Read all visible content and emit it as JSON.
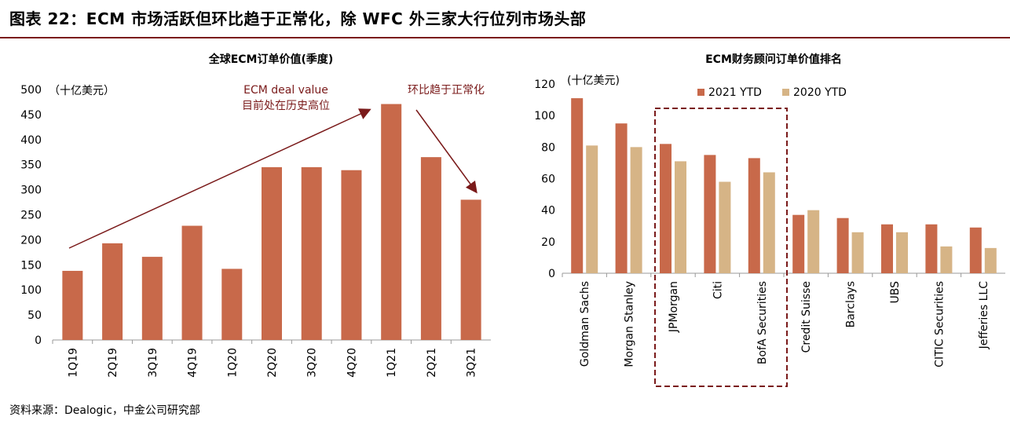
{
  "page": {
    "title": "图表 22：ECM 市场活跃但环比趋于正常化，除 WFC 外三家大行位列市场头部",
    "source": "资料来源：Dealogic，中金公司研究部"
  },
  "colors": {
    "bar_2021": "#c8694a",
    "bar_2020": "#d6b486",
    "annotation": "#7a1a1a",
    "dashed_box": "#7a1a1a",
    "rule": "#7a1a1a"
  },
  "chart_data": [
    {
      "type": "bar",
      "title": "全球ECM订单价值(季度)",
      "unit_label": "（十亿美元）",
      "categories": [
        "1Q19",
        "2Q19",
        "3Q19",
        "4Q19",
        "1Q20",
        "2Q20",
        "3Q20",
        "4Q20",
        "1Q21",
        "2Q21",
        "3Q21"
      ],
      "values": [
        138,
        193,
        166,
        228,
        142,
        345,
        345,
        339,
        471,
        365,
        280
      ],
      "ylim": [
        0,
        500
      ],
      "yticks": [
        0,
        50,
        100,
        150,
        200,
        250,
        300,
        350,
        400,
        450,
        500
      ],
      "grid": false,
      "annotations": [
        {
          "label": "ECM deal value",
          "text2": "目前处在历史高位"
        },
        {
          "label": "环比趋于正常化"
        }
      ]
    },
    {
      "type": "bar",
      "title": "ECM财务顾问订单价值排名",
      "unit_label": "(十亿美元)",
      "categories": [
        "Goldman Sachs",
        "Morgan Stanley",
        "JPMorgan",
        "Citi",
        "BofA Securities",
        "Credit Suisse",
        "Barclays",
        "UBS",
        "CITIC Securities",
        "Jefferies LLC"
      ],
      "series": [
        {
          "name": "2021 YTD",
          "values": [
            111,
            95,
            82,
            75,
            73,
            37,
            35,
            31,
            31,
            29
          ]
        },
        {
          "name": "2020 YTD",
          "values": [
            81,
            80,
            71,
            58,
            64,
            40,
            26,
            26,
            17,
            16
          ]
        }
      ],
      "ylim": [
        0,
        120
      ],
      "yticks": [
        0,
        20,
        40,
        60,
        80,
        100,
        120
      ],
      "grid": false,
      "legend": "top",
      "highlight_box": "JPMorgan-Citi-BofA Securities"
    }
  ]
}
